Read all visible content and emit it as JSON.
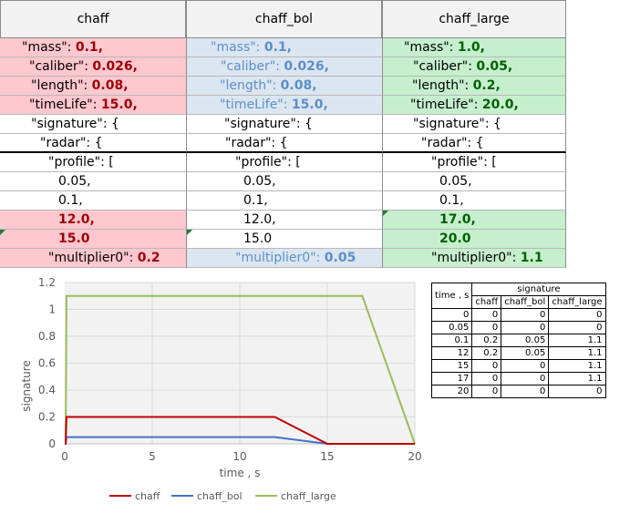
{
  "headers": [
    "chaff",
    "chaff_bol",
    "chaff_large"
  ],
  "columns": [
    {
      "rows": [
        {
          "key": "\"mass\": ",
          "val": "0.1,"
        },
        {
          "key": "\"caliber\": ",
          "val": "0.026,"
        },
        {
          "key": "\"length\": ",
          "val": "0.08,"
        },
        {
          "key": "\"timeLife\": ",
          "val": "15.0,"
        },
        {
          "key": "\"signature\": {",
          "val": ""
        },
        {
          "key": "\"radar\": {",
          "val": ""
        },
        {
          "key": "\"profile\": [",
          "val": ""
        },
        {
          "key": "0.05,",
          "val": ""
        },
        {
          "key": "0.1,",
          "val": ""
        },
        {
          "key": "",
          "val": "12.0,"
        },
        {
          "key": "",
          "val": "15.0"
        },
        {
          "key": "\"multiplier0\": ",
          "val": "0.2"
        }
      ]
    },
    {
      "rows": [
        {
          "key": "\"mass\": ",
          "val": "0.1,"
        },
        {
          "key": "\"caliber\": ",
          "val": "0.026,"
        },
        {
          "key": "\"length\": ",
          "val": "0.08,"
        },
        {
          "key": "\"timeLife\": ",
          "val": "15.0,"
        },
        {
          "key": "\"signature\": {",
          "val": ""
        },
        {
          "key": "\"radar\": {",
          "val": ""
        },
        {
          "key": "\"profile\": [",
          "val": ""
        },
        {
          "key": "0.05,",
          "val": ""
        },
        {
          "key": "0.1,",
          "val": ""
        },
        {
          "key": "12.0,",
          "val": ""
        },
        {
          "key": "15.0",
          "val": ""
        },
        {
          "key": "\"multiplier0\": ",
          "val": "0.05"
        }
      ]
    },
    {
      "rows": [
        {
          "key": "\"mass\": ",
          "val": "1.0,"
        },
        {
          "key": "\"caliber\": ",
          "val": "0.05,"
        },
        {
          "key": "\"length\": ",
          "val": "0.2,"
        },
        {
          "key": "\"timeLife\": ",
          "val": "20.0,"
        },
        {
          "key": "\"signature\": {",
          "val": ""
        },
        {
          "key": "\"radar\": {",
          "val": ""
        },
        {
          "key": "\"profile\": [",
          "val": ""
        },
        {
          "key": "0.05,",
          "val": ""
        },
        {
          "key": "0.1,",
          "val": ""
        },
        {
          "key": "",
          "val": "17.0,"
        },
        {
          "key": "",
          "val": "20.0"
        },
        {
          "key": "\"multiplier0\": ",
          "val": "1.1"
        }
      ]
    }
  ],
  "colors": {
    "chaff": "#c00000",
    "chaff_bol": "#4472c4",
    "chaff_large": "#9bbb59"
  },
  "chart_data": {
    "type": "line",
    "xlabel": "time , s",
    "ylabel": "signature",
    "xlim": [
      0,
      20
    ],
    "ylim": [
      0,
      1.2
    ],
    "xticks": [
      0,
      5,
      10,
      15,
      20
    ],
    "yticks": [
      0,
      0.2,
      0.4,
      0.6,
      0.8,
      1,
      1.2
    ],
    "grid": true,
    "legend": "bottom",
    "series": [
      {
        "name": "chaff",
        "x": [
          0,
          0.05,
          0.1,
          12,
          15,
          17,
          20
        ],
        "y": [
          0,
          0,
          0.2,
          0.2,
          0,
          0,
          0
        ]
      },
      {
        "name": "chaff_bol",
        "x": [
          0,
          0.05,
          0.1,
          12,
          15,
          17,
          20
        ],
        "y": [
          0,
          0,
          0.05,
          0.05,
          0,
          0,
          0
        ]
      },
      {
        "name": "chaff_large",
        "x": [
          0,
          0.05,
          0.1,
          12,
          15,
          17,
          20
        ],
        "y": [
          0,
          0,
          1.1,
          1.1,
          1.1,
          1.1,
          0
        ]
      }
    ]
  },
  "data_table": {
    "group_header": "signature",
    "time_header": "time , s",
    "col_headers": [
      "chaff",
      "chaff_bol",
      "chaff_large"
    ],
    "rows": [
      [
        "0",
        "0",
        "0",
        "0"
      ],
      [
        "0.05",
        "0",
        "0",
        "0"
      ],
      [
        "0.1",
        "0.2",
        "0.05",
        "1.1"
      ],
      [
        "12",
        "0.2",
        "0.05",
        "1.1"
      ],
      [
        "15",
        "0",
        "0",
        "1.1"
      ],
      [
        "17",
        "0",
        "0",
        "1.1"
      ],
      [
        "20",
        "0",
        "0",
        "0"
      ]
    ]
  }
}
